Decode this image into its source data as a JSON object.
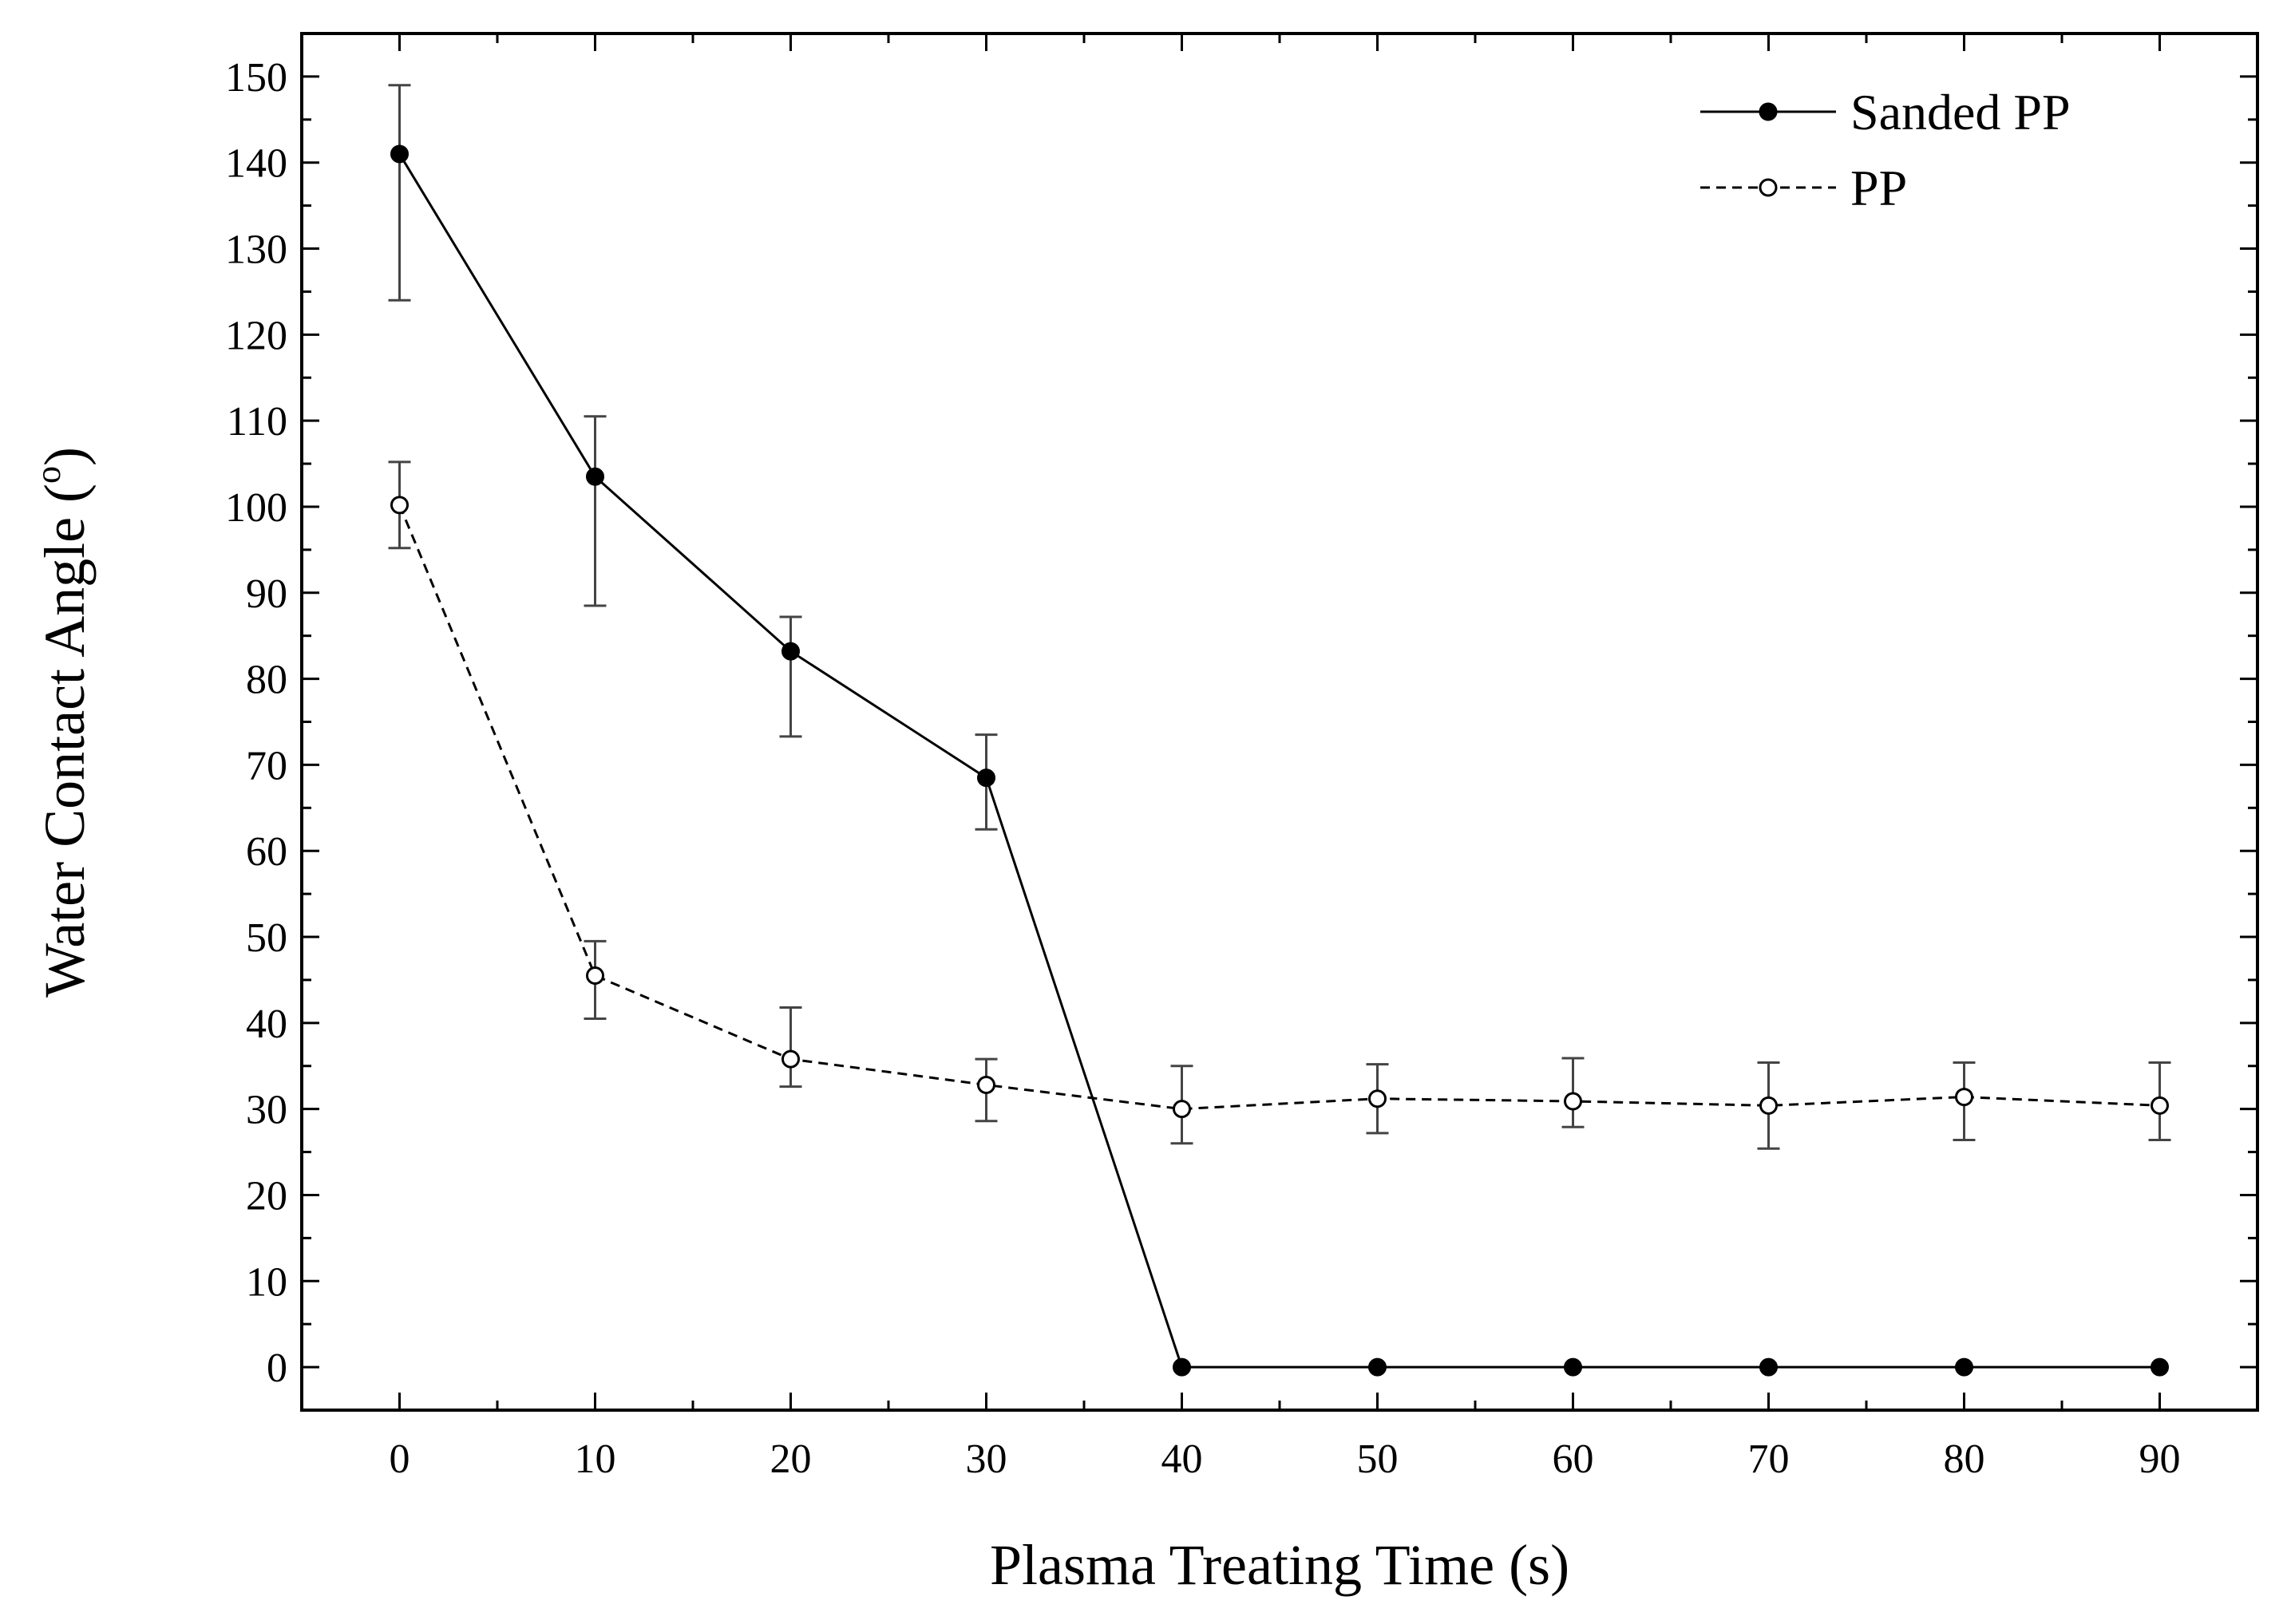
{
  "chart_data": {
    "type": "line",
    "title": "",
    "xlabel": "Plasma Treating Time (s)",
    "ylabel_main": "Water Contact Angle (",
    "ylabel_sup": "o",
    "ylabel_tail": ")",
    "xlim": [
      -5,
      95
    ],
    "ylim": [
      -5,
      155
    ],
    "xticks": [
      0,
      10,
      20,
      30,
      40,
      50,
      60,
      70,
      80,
      90
    ],
    "yticks": [
      0,
      10,
      20,
      30,
      40,
      50,
      60,
      70,
      80,
      90,
      100,
      110,
      120,
      130,
      140,
      150
    ],
    "legend_position": "top-right",
    "series": [
      {
        "name": "Sanded PP",
        "line_style": "solid",
        "marker": "filled-circle",
        "x": [
          0,
          10,
          20,
          30,
          40,
          50,
          60,
          70,
          80,
          90
        ],
        "y": [
          141,
          103.5,
          83.2,
          68.5,
          0,
          0,
          0,
          0,
          0,
          0
        ],
        "err_high": [
          149,
          110.5,
          87.2,
          73.5,
          null,
          null,
          null,
          null,
          null,
          null
        ],
        "err_low": [
          124,
          88.5,
          73.3,
          62.5,
          null,
          null,
          null,
          null,
          null,
          null
        ]
      },
      {
        "name": "PP",
        "line_style": "dashed",
        "marker": "open-circle",
        "x": [
          0,
          10,
          20,
          30,
          40,
          50,
          60,
          70,
          80,
          90
        ],
        "y": [
          100.2,
          45.5,
          35.8,
          32.8,
          30.0,
          31.2,
          30.9,
          30.4,
          31.4,
          30.4
        ],
        "err_high": [
          105.2,
          49.5,
          41.8,
          35.8,
          35.0,
          35.2,
          35.9,
          35.4,
          35.4,
          35.4
        ],
        "err_low": [
          95.2,
          40.5,
          32.6,
          28.6,
          26.0,
          27.2,
          27.9,
          25.4,
          26.4,
          26.4
        ]
      }
    ]
  }
}
